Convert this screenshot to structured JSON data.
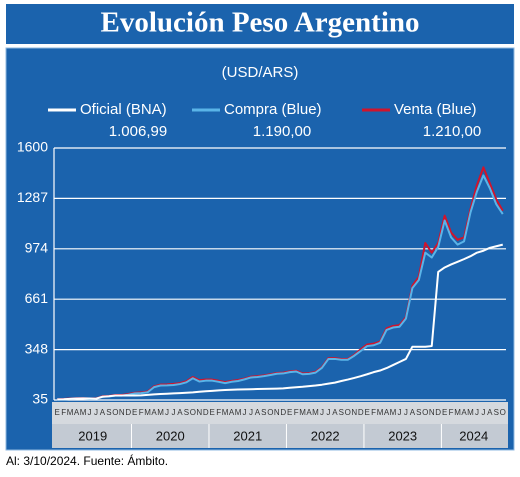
{
  "chart_data": {
    "type": "line",
    "title": "Evolución Peso Argentino",
    "subtitle": "(USD/ARS)",
    "note": "Al: 3/10/2024. Fuente: Ámbito.",
    "years": [
      "2019",
      "2020",
      "2021",
      "2022",
      "2023",
      "2024"
    ],
    "categories": [
      "E",
      "F",
      "M",
      "A",
      "M",
      "J",
      "J",
      "A",
      "S",
      "O",
      "N",
      "D",
      "E",
      "F",
      "M",
      "A",
      "M",
      "J",
      "J",
      "A",
      "S",
      "O",
      "N",
      "D",
      "E",
      "F",
      "M",
      "A",
      "M",
      "J",
      "J",
      "A",
      "S",
      "O",
      "N",
      "D",
      "E",
      "F",
      "M",
      "A",
      "M",
      "J",
      "J",
      "A",
      "S",
      "O",
      "N",
      "D",
      "E",
      "F",
      "M",
      "A",
      "M",
      "J",
      "J",
      "A",
      "S",
      "O",
      "N",
      "D",
      "E",
      "F",
      "M",
      "A",
      "M",
      "J",
      "J",
      "A",
      "S",
      "O"
    ],
    "series": [
      {
        "name": "Oficial (BNA)",
        "color": "#ffffff",
        "current": "1.006,99",
        "values": [
          39,
          40,
          42,
          44,
          45,
          44,
          43,
          55,
          58,
          63,
          63,
          63,
          63,
          64,
          67,
          70,
          72,
          74,
          76,
          78,
          80,
          82,
          86,
          89,
          92,
          95,
          97,
          99,
          100,
          101,
          102,
          103,
          104,
          105,
          106,
          107,
          111,
          114,
          117,
          121,
          125,
          130,
          137,
          143,
          153,
          162,
          172,
          183,
          195,
          208,
          218,
          233,
          252,
          271,
          290,
          366,
          366,
          366,
          370,
          830,
          858,
          877,
          893,
          910,
          928,
          950,
          962,
          980,
          990,
          1000
        ]
      },
      {
        "name": "Compra (Blue)",
        "color": "#5ab4e8",
        "current": "1.190,00",
        "values": [
          37,
          39,
          42,
          44,
          44,
          42,
          43,
          56,
          57,
          62,
          62,
          68,
          76,
          78,
          83,
          115,
          125,
          126,
          128,
          134,
          145,
          170,
          150,
          155,
          155,
          148,
          140,
          148,
          153,
          163,
          175,
          178,
          183,
          190,
          198,
          200,
          208,
          212,
          195,
          197,
          205,
          235,
          290,
          290,
          285,
          285,
          310,
          340,
          370,
          375,
          390,
          470,
          485,
          490,
          540,
          730,
          780,
          950,
          920,
          985,
          1150,
          1045,
          1000,
          1020,
          1200,
          1330,
          1430,
          1350,
          1250,
          1190
        ]
      },
      {
        "name": "Venta (Blue)",
        "color": "#d0142c",
        "current": "1.210,00",
        "values": [
          39,
          41,
          44,
          46,
          46,
          44,
          45,
          59,
          60,
          66,
          66,
          72,
          80,
          82,
          88,
          120,
          131,
          132,
          135,
          140,
          152,
          178,
          158,
          162,
          162,
          155,
          146,
          154,
          159,
          168,
          180,
          183,
          188,
          195,
          203,
          205,
          213,
          217,
          200,
          202,
          210,
          240,
          295,
          295,
          290,
          290,
          315,
          350,
          380,
          385,
          398,
          480,
          495,
          500,
          550,
          745,
          800,
          1010,
          950,
          1010,
          1180,
          1075,
          1030,
          1045,
          1220,
          1370,
          1480,
          1380,
          1280,
          1210
        ]
      }
    ],
    "ylim": [
      35,
      1600
    ],
    "yticks": [
      35,
      348,
      661,
      974,
      1287,
      1600
    ],
    "grid": true
  }
}
